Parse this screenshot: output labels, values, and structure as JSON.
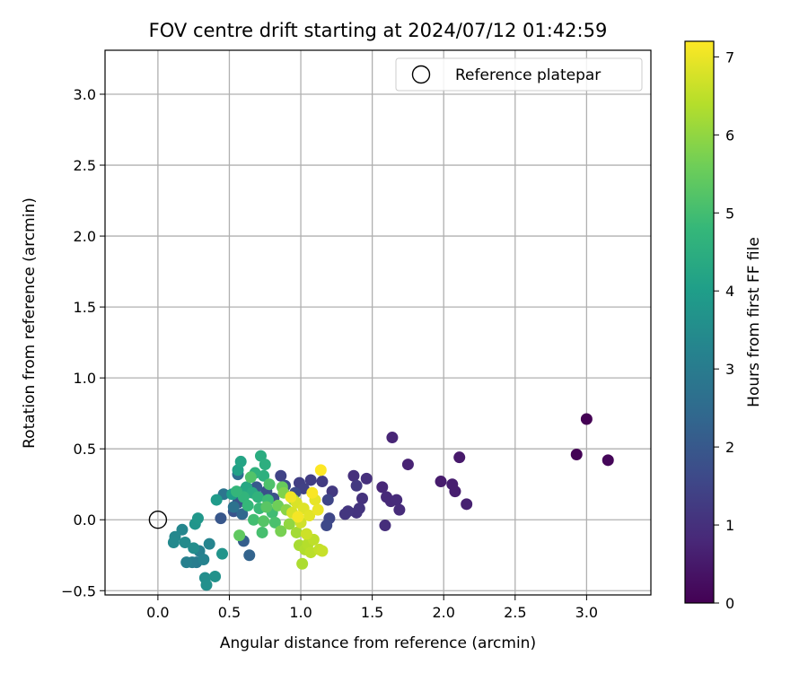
{
  "chart_data": {
    "type": "scatter",
    "title": "FOV centre drift starting at 2024/07/12 01:42:59",
    "xlabel": "Angular distance from reference (arcmin)",
    "ylabel": "Rotation from reference (arcmin)",
    "xlim": [
      -0.37,
      3.45
    ],
    "ylim": [
      -0.53,
      3.31
    ],
    "xticks": [
      "0.0",
      "0.5",
      "1.0",
      "1.5",
      "2.0",
      "2.5",
      "3.0"
    ],
    "yticks": [
      "−0.5",
      "0.0",
      "0.5",
      "1.0",
      "1.5",
      "2.0",
      "2.5",
      "3.0"
    ],
    "grid": true,
    "legend": {
      "position": "top-right",
      "entries": [
        {
          "label": "Reference platepar",
          "marker": "hollow-circle"
        }
      ]
    },
    "reference_point": {
      "x": 0.0,
      "y": 0.0
    },
    "colorbar": {
      "label": "Hours from first FF file",
      "range": [
        0,
        7.2
      ],
      "ticks": [
        "0",
        "1",
        "2",
        "3",
        "4",
        "5",
        "6",
        "7"
      ],
      "colormap": [
        "#440154",
        "#482878",
        "#3e4989",
        "#31688e",
        "#26828e",
        "#1f9e89",
        "#35b779",
        "#6ece58",
        "#b5de2b",
        "#fde725"
      ]
    },
    "points": [
      {
        "x": 3.0,
        "y": 0.71,
        "h": 0.0
      },
      {
        "x": 2.93,
        "y": 0.46,
        "h": 0.05
      },
      {
        "x": 3.15,
        "y": 0.42,
        "h": 0.1
      },
      {
        "x": 2.11,
        "y": 0.44,
        "h": 0.5
      },
      {
        "x": 1.98,
        "y": 0.27,
        "h": 0.55
      },
      {
        "x": 2.06,
        "y": 0.25,
        "h": 0.6
      },
      {
        "x": 2.08,
        "y": 0.2,
        "h": 0.6
      },
      {
        "x": 2.16,
        "y": 0.11,
        "h": 0.65
      },
      {
        "x": 1.75,
        "y": 0.39,
        "h": 0.7
      },
      {
        "x": 1.64,
        "y": 0.58,
        "h": 0.75
      },
      {
        "x": 1.57,
        "y": 0.23,
        "h": 0.8
      },
      {
        "x": 1.6,
        "y": 0.16,
        "h": 0.85
      },
      {
        "x": 1.63,
        "y": 0.13,
        "h": 0.85
      },
      {
        "x": 1.67,
        "y": 0.14,
        "h": 0.9
      },
      {
        "x": 1.69,
        "y": 0.07,
        "h": 0.9
      },
      {
        "x": 1.59,
        "y": -0.04,
        "h": 0.95
      },
      {
        "x": 1.46,
        "y": 0.29,
        "h": 1.0
      },
      {
        "x": 1.37,
        "y": 0.31,
        "h": 1.0
      },
      {
        "x": 1.43,
        "y": 0.15,
        "h": 1.05
      },
      {
        "x": 1.41,
        "y": 0.08,
        "h": 1.1
      },
      {
        "x": 1.39,
        "y": 0.05,
        "h": 1.1
      },
      {
        "x": 1.33,
        "y": 0.06,
        "h": 1.15
      },
      {
        "x": 1.31,
        "y": 0.04,
        "h": 1.15
      },
      {
        "x": 1.39,
        "y": 0.24,
        "h": 1.2
      },
      {
        "x": 1.22,
        "y": 0.2,
        "h": 1.2
      },
      {
        "x": 1.15,
        "y": 0.27,
        "h": 1.25
      },
      {
        "x": 1.07,
        "y": 0.28,
        "h": 1.3
      },
      {
        "x": 0.99,
        "y": 0.26,
        "h": 1.35
      },
      {
        "x": 1.02,
        "y": 0.22,
        "h": 1.4
      },
      {
        "x": 0.86,
        "y": 0.31,
        "h": 1.45
      },
      {
        "x": 1.19,
        "y": 0.14,
        "h": 1.5
      },
      {
        "x": 1.2,
        "y": 0.01,
        "h": 1.55
      },
      {
        "x": 1.18,
        "y": -0.04,
        "h": 1.6
      },
      {
        "x": 0.96,
        "y": 0.19,
        "h": 1.65
      },
      {
        "x": 0.89,
        "y": 0.24,
        "h": 1.7
      },
      {
        "x": 0.81,
        "y": 0.15,
        "h": 1.75
      },
      {
        "x": 0.76,
        "y": 0.2,
        "h": 1.8
      },
      {
        "x": 0.53,
        "y": 0.06,
        "h": 1.85
      },
      {
        "x": 0.56,
        "y": 0.12,
        "h": 1.9
      },
      {
        "x": 0.44,
        "y": 0.01,
        "h": 1.95
      },
      {
        "x": 0.61,
        "y": 0.21,
        "h": 2.0
      },
      {
        "x": 0.69,
        "y": 0.23,
        "h": 2.05
      },
      {
        "x": 0.6,
        "y": -0.15,
        "h": 2.15
      },
      {
        "x": 0.64,
        "y": -0.25,
        "h": 2.3
      },
      {
        "x": 0.59,
        "y": 0.04,
        "h": 2.4
      },
      {
        "x": 0.56,
        "y": 0.32,
        "h": 2.55
      },
      {
        "x": 0.58,
        "y": 0.18,
        "h": 2.6
      },
      {
        "x": 0.53,
        "y": 0.09,
        "h": 2.7
      },
      {
        "x": 0.46,
        "y": 0.18,
        "h": 2.8
      },
      {
        "x": 0.27,
        "y": -0.3,
        "h": 2.95
      },
      {
        "x": 0.24,
        "y": -0.3,
        "h": 3.05
      },
      {
        "x": 0.29,
        "y": -0.22,
        "h": 3.1
      },
      {
        "x": 0.2,
        "y": -0.3,
        "h": 3.15
      },
      {
        "x": 0.32,
        "y": -0.28,
        "h": 3.2
      },
      {
        "x": 0.36,
        "y": -0.17,
        "h": 3.25
      },
      {
        "x": 0.17,
        "y": -0.07,
        "h": 3.3
      },
      {
        "x": 0.12,
        "y": -0.12,
        "h": 3.35
      },
      {
        "x": 0.11,
        "y": -0.16,
        "h": 3.4
      },
      {
        "x": 0.19,
        "y": -0.16,
        "h": 3.45
      },
      {
        "x": 0.25,
        "y": -0.2,
        "h": 3.5
      },
      {
        "x": 0.33,
        "y": -0.41,
        "h": 3.55
      },
      {
        "x": 0.34,
        "y": -0.46,
        "h": 3.6
      },
      {
        "x": 0.4,
        "y": -0.4,
        "h": 3.65
      },
      {
        "x": 0.45,
        "y": -0.24,
        "h": 3.7
      },
      {
        "x": 0.26,
        "y": -0.03,
        "h": 3.75
      },
      {
        "x": 0.28,
        "y": 0.01,
        "h": 3.8
      },
      {
        "x": 0.41,
        "y": 0.14,
        "h": 3.9
      },
      {
        "x": 0.52,
        "y": 0.18,
        "h": 4.0
      },
      {
        "x": 0.56,
        "y": 0.35,
        "h": 4.1
      },
      {
        "x": 0.58,
        "y": 0.41,
        "h": 4.2
      },
      {
        "x": 0.62,
        "y": 0.23,
        "h": 4.3
      },
      {
        "x": 0.66,
        "y": 0.19,
        "h": 4.4
      },
      {
        "x": 0.72,
        "y": 0.45,
        "h": 4.45
      },
      {
        "x": 0.75,
        "y": 0.39,
        "h": 4.5
      },
      {
        "x": 0.74,
        "y": 0.31,
        "h": 4.55
      },
      {
        "x": 0.68,
        "y": 0.33,
        "h": 4.6
      },
      {
        "x": 0.7,
        "y": 0.16,
        "h": 4.65
      },
      {
        "x": 0.6,
        "y": 0.16,
        "h": 4.7
      },
      {
        "x": 0.55,
        "y": 0.2,
        "h": 4.75
      },
      {
        "x": 0.63,
        "y": 0.1,
        "h": 4.8
      },
      {
        "x": 0.71,
        "y": 0.08,
        "h": 4.85
      },
      {
        "x": 0.77,
        "y": 0.14,
        "h": 4.9
      },
      {
        "x": 0.8,
        "y": 0.05,
        "h": 4.95
      },
      {
        "x": 0.67,
        "y": 0.0,
        "h": 5.0
      },
      {
        "x": 0.73,
        "y": -0.09,
        "h": 5.05
      },
      {
        "x": 0.82,
        "y": -0.02,
        "h": 5.1
      },
      {
        "x": 0.78,
        "y": 0.25,
        "h": 5.15
      },
      {
        "x": 0.65,
        "y": 0.3,
        "h": 5.2
      },
      {
        "x": 0.74,
        "y": -0.01,
        "h": 5.25
      },
      {
        "x": 0.76,
        "y": 0.09,
        "h": 5.3
      },
      {
        "x": 0.57,
        "y": -0.11,
        "h": 5.4
      },
      {
        "x": 0.87,
        "y": 0.23,
        "h": 5.5
      },
      {
        "x": 0.84,
        "y": 0.1,
        "h": 5.6
      },
      {
        "x": 0.86,
        "y": -0.08,
        "h": 5.7
      },
      {
        "x": 0.88,
        "y": 0.19,
        "h": 5.8
      },
      {
        "x": 0.9,
        "y": 0.07,
        "h": 5.9
      },
      {
        "x": 0.92,
        "y": -0.03,
        "h": 6.0
      },
      {
        "x": 0.95,
        "y": 0.14,
        "h": 6.1
      },
      {
        "x": 0.97,
        "y": -0.09,
        "h": 6.2
      },
      {
        "x": 0.99,
        "y": -0.18,
        "h": 6.25
      },
      {
        "x": 1.01,
        "y": -0.31,
        "h": 6.3
      },
      {
        "x": 1.03,
        "y": -0.21,
        "h": 6.35
      },
      {
        "x": 1.05,
        "y": -0.17,
        "h": 6.4
      },
      {
        "x": 1.07,
        "y": -0.23,
        "h": 6.45
      },
      {
        "x": 1.09,
        "y": -0.14,
        "h": 6.5
      },
      {
        "x": 1.13,
        "y": -0.21,
        "h": 6.55
      },
      {
        "x": 1.15,
        "y": -0.22,
        "h": 6.6
      },
      {
        "x": 1.04,
        "y": -0.1,
        "h": 6.65
      },
      {
        "x": 1.0,
        "y": -0.02,
        "h": 6.7
      },
      {
        "x": 0.94,
        "y": 0.05,
        "h": 6.75
      },
      {
        "x": 0.97,
        "y": 0.12,
        "h": 6.8
      },
      {
        "x": 1.02,
        "y": 0.08,
        "h": 6.85
      },
      {
        "x": 1.06,
        "y": 0.03,
        "h": 6.9
      },
      {
        "x": 1.1,
        "y": 0.14,
        "h": 6.95
      },
      {
        "x": 1.12,
        "y": 0.07,
        "h": 7.0
      },
      {
        "x": 0.93,
        "y": 0.16,
        "h": 7.05
      },
      {
        "x": 0.98,
        "y": 0.02,
        "h": 7.1
      },
      {
        "x": 1.08,
        "y": 0.19,
        "h": 7.15
      },
      {
        "x": 1.14,
        "y": 0.35,
        "h": 7.2
      }
    ]
  }
}
